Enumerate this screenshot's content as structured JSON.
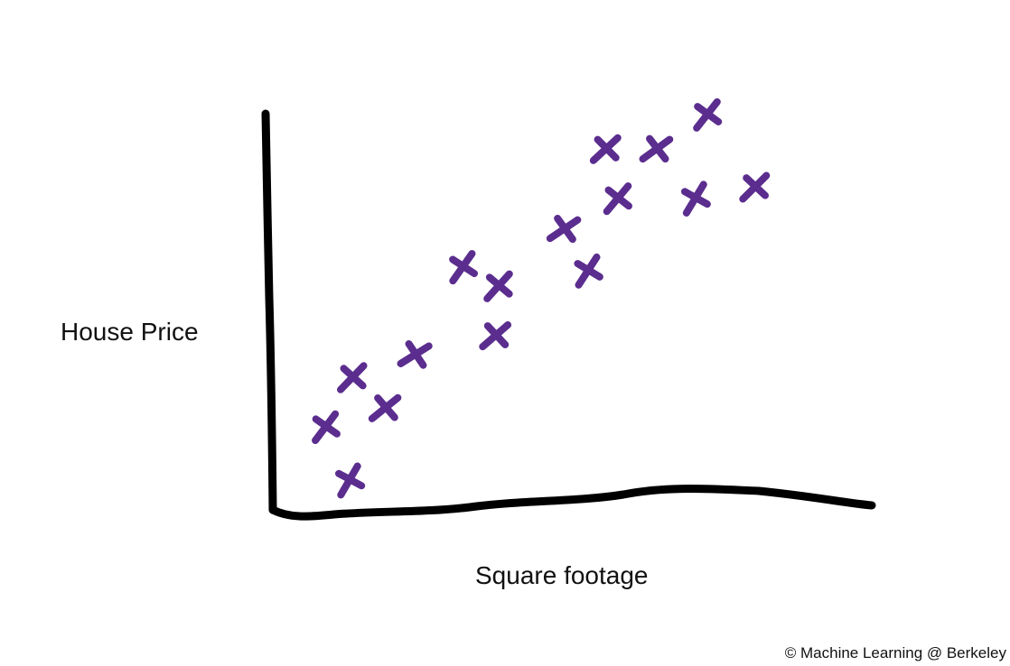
{
  "chart_data": {
    "type": "scatter",
    "title": "",
    "xlabel": "Square footage",
    "ylabel": "House Price",
    "xlim": [
      0,
      100
    ],
    "ylim": [
      0,
      100
    ],
    "grid": false,
    "legend": "none",
    "marker": "x",
    "series": [
      {
        "color": "#5b2d8e",
        "points": [
          {
            "x": 12.5,
            "y": 7
          },
          {
            "x": 8.5,
            "y": 21
          },
          {
            "x": 13,
            "y": 34
          },
          {
            "x": 18.5,
            "y": 26
          },
          {
            "x": 23.5,
            "y": 40
          },
          {
            "x": 31.5,
            "y": 63
          },
          {
            "x": 37.5,
            "y": 58
          },
          {
            "x": 37,
            "y": 45
          },
          {
            "x": 48.5,
            "y": 73
          },
          {
            "x": 52.5,
            "y": 62
          },
          {
            "x": 57.5,
            "y": 81
          },
          {
            "x": 55.5,
            "y": 94
          },
          {
            "x": 64,
            "y": 94
          },
          {
            "x": 70.5,
            "y": 81
          },
          {
            "x": 72.5,
            "y": 103
          },
          {
            "x": 80.5,
            "y": 84
          }
        ]
      }
    ]
  },
  "credit": "© Machine Learning @ Berkeley"
}
